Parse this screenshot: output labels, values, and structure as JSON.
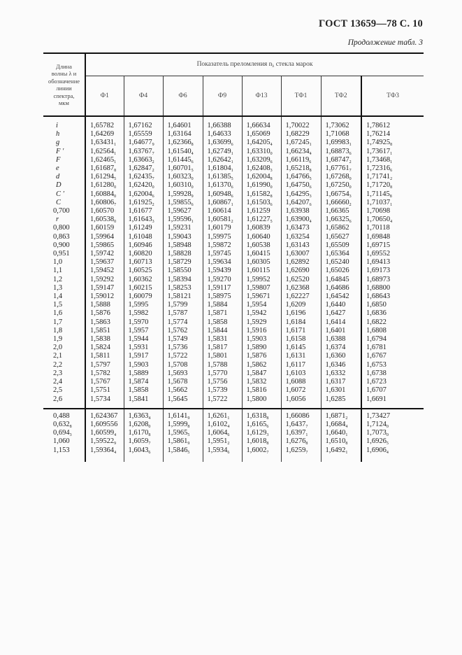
{
  "header": {
    "doc_title": "ГОСТ 13659—78 С. 10",
    "continuation": "Продолжение табл. 3"
  },
  "table": {
    "row_header": [
      "Длина",
      "волны λ и",
      "обозначение",
      "линии",
      "спектра,",
      "мкм"
    ],
    "group_header": "Показатель преломления n",
    "group_header_sub": "λ",
    "group_header_tail": "стекла марок",
    "columns": [
      "Ф1",
      "Ф4",
      "Ф6",
      "Ф9",
      "Ф13",
      "ТФ1",
      "ТФ2",
      "ТФ3"
    ],
    "rows": [
      [
        "i",
        "1,65782",
        "1,67162",
        "1,64601",
        "1,66388",
        "1,66634",
        "1,70022",
        "1,73062",
        "1,78612"
      ],
      [
        "h",
        "1,64269",
        "1,65559",
        "1,63164",
        "1,64633",
        "1,65069",
        "1,68229",
        "1,71068",
        "1,76214"
      ],
      [
        "g",
        "1,63431_1",
        "1,64677_9",
        "1,62366_8",
        "1,63699_6",
        "1,64205_4",
        "1,67245_1",
        "1,69983_1",
        "1,74925_8"
      ],
      [
        "F ′",
        "1,62564_1",
        "1,63767_7",
        "1,61540_4",
        "1,62749_1",
        "1,63310_0",
        "1,66234_4",
        "1,68873_6",
        "1,73617_1"
      ],
      [
        "F",
        "1,62465_1",
        "1,63663_2",
        "1,61445_6",
        "1,62642_1",
        "1,63209_6",
        "1,66119_6",
        "1,68747_2",
        "1,73468_1"
      ],
      [
        "e",
        "1,61687_8",
        "1,62847_2",
        "1,60701_5",
        "1,61804_1",
        "1,62408_3",
        "1,65218_8",
        "1,67761_7",
        "1,72316_6"
      ],
      [
        "d",
        "1,61294_5",
        "1,62435_7",
        "1,60323_0",
        "1,61385_5",
        "1,62004_8",
        "1,64766_5",
        "1,67268_0",
        "1,71741_2"
      ],
      [
        "D",
        "1,61280_0",
        "1,62420_0",
        "1,60310_0",
        "1,61370_6",
        "1,61990_0",
        "1,64750_6",
        "1,67250_0",
        "1,71720_8"
      ],
      [
        "C ′",
        "1,60884_0",
        "1,62004_6",
        "1,59928_9",
        "1,60948_6",
        "1,61582_8",
        "1,64295_3",
        "1,66754_3",
        "1,71145_8"
      ],
      [
        "C",
        "1,60806_7",
        "1,61925_2",
        "1,59855_6",
        "1,60867_1",
        "1,61503_6",
        "1,64207_6",
        "1,66660_2",
        "1,71037_1"
      ],
      [
        "0,700",
        "1,60570",
        "1,61677",
        "1,59627",
        "1,60614",
        "1,61259",
        "1,63938",
        "1,66365",
        "1,70698"
      ],
      [
        "r",
        "1,60538_0",
        "1,61643_3",
        "1,59596_1",
        "1,60581_2",
        "1,61227_5",
        "1,63900_4",
        "1,66325_6",
        "1,70650_4"
      ],
      [
        "0,800",
        "1,60159",
        "1,61249",
        "1,59231",
        "1,60179",
        "1,60839",
        "1,63473",
        "1,65862",
        "1,70118"
      ],
      [
        "0,863",
        "1,59964",
        "1,61048",
        "1,59043",
        "1,59975",
        "1,60640",
        "1,63254",
        "1,65627",
        "1,69848"
      ],
      [
        "0,900",
        "1,59865",
        "1,60946",
        "1,58948",
        "1,59872",
        "1,60538",
        "1,63143",
        "1,65509",
        "1,69715"
      ],
      [
        "0,951",
        "1,59742",
        "1,60820",
        "1,58828",
        "1,59745",
        "1,60415",
        "1,63007",
        "1,65364",
        "1,69552"
      ],
      [
        "1,0",
        "1,59637",
        "1,60713",
        "1,58729",
        "1,59634",
        "1,60305",
        "1,62892",
        "1,65240",
        "1,69413"
      ],
      [
        "1,1",
        "1,59452",
        "1,60525",
        "1,58550",
        "1,59439",
        "1,60115",
        "1,62690",
        "1,65026",
        "1,69173"
      ],
      [
        "1,2",
        "1,59292",
        "1,60362",
        "1,58394",
        "1,59270",
        "1,59952",
        "1,62520",
        "1,64845",
        "1,68973"
      ],
      [
        "1,3",
        "1,59147",
        "1,60215",
        "1,58253",
        "1,59117",
        "1,59807",
        "1,62368",
        "1,64686",
        "1,68800"
      ],
      [
        "1,4",
        "1,59012",
        "1,60079",
        "1,58121",
        "1,58975",
        "1,59671",
        "1,62227",
        "1,64542",
        "1,68643"
      ],
      [
        "1,5",
        "1,5888",
        "1,5995",
        "1,5799",
        "1,5884",
        "1,5954",
        "1,6209",
        "1,6440",
        "1,6850"
      ],
      [
        "1,6",
        "1,5876",
        "1,5982",
        "1,5787",
        "1,5871",
        "1,5942",
        "1,6196",
        "1,6427",
        "1,6836"
      ],
      [
        "1,7",
        "1,5863",
        "1,5970",
        "1,5774",
        "1,5858",
        "1,5929",
        "1,6184",
        "1,6414",
        "1,6822"
      ],
      [
        "1,8",
        "1,5851",
        "1,5957",
        "1,5762",
        "1,5844",
        "1,5916",
        "1,6171",
        "1,6401",
        "1,6808"
      ],
      [
        "1,9",
        "1,5838",
        "1,5944",
        "1,5749",
        "1,5831",
        "1,5903",
        "1,6158",
        "1,6388",
        "1,6794"
      ],
      [
        "2,0",
        "1,5824",
        "1,5931",
        "1,5736",
        "1,5817",
        "1,5890",
        "1,6145",
        "1,6374",
        "1,6781"
      ],
      [
        "2,1",
        "1,5811",
        "1,5917",
        "1,5722",
        "1,5801",
        "1,5876",
        "1,6131",
        "1,6360",
        "1,6767"
      ],
      [
        "2,2",
        "1,5797",
        "1,5903",
        "1,5708",
        "1,5788",
        "1,5862",
        "1,6117",
        "1,6346",
        "1,6753"
      ],
      [
        "2,3",
        "1,5782",
        "1,5889",
        "1,5693",
        "1,5770",
        "1,5847",
        "1,6103",
        "1,6332",
        "1,6738"
      ],
      [
        "2,4",
        "1,5767",
        "1,5874",
        "1,5678",
        "1,5756",
        "1,5832",
        "1,6088",
        "1,6317",
        "1,6723"
      ],
      [
        "2,5",
        "1,5751",
        "1,5858",
        "1,5662",
        "1,5739",
        "1,5816",
        "1,6072",
        "1,6301",
        "1,6707"
      ],
      [
        "2,6",
        "1,5734",
        "1,5841",
        "1,5645",
        "1,5722",
        "1,5800",
        "1,6056",
        "1,6285",
        "1,6691"
      ]
    ],
    "extra_rows": [
      [
        "0,488",
        "1,624367",
        "1,6363_4",
        "1,6141_9",
        "1,6261_1",
        "1,6318_8",
        "1,66086",
        "1,6871_2",
        "1,73427"
      ],
      [
        "0,632_8",
        "1,609556",
        "1,6208_0",
        "1,5999_8",
        "1,6102_4",
        "1,6165_6",
        "1,6437_7",
        "1,6684_4",
        "1,7124_0"
      ],
      [
        "0,694_3",
        "1,60599_4",
        "1,6170_8",
        "1,5965_5",
        "1,6064_6",
        "1,6129_3",
        "1,6397_1",
        "1,6640_1",
        "1,7073_0"
      ],
      [
        "1,060",
        "1,59522_9",
        "1,6059_7",
        "1,5861_9",
        "1,5951_2",
        "1,6018_8",
        "1,6276_8",
        "1,6510_8",
        "1,6926_5"
      ],
      [
        "1,153",
        "1,59364_4",
        "1,6043_6",
        "1,5846_5",
        "1,5934_6",
        "1,6002_7",
        "1,6259_7",
        "1,6492_1",
        "1,6906_4"
      ]
    ]
  }
}
